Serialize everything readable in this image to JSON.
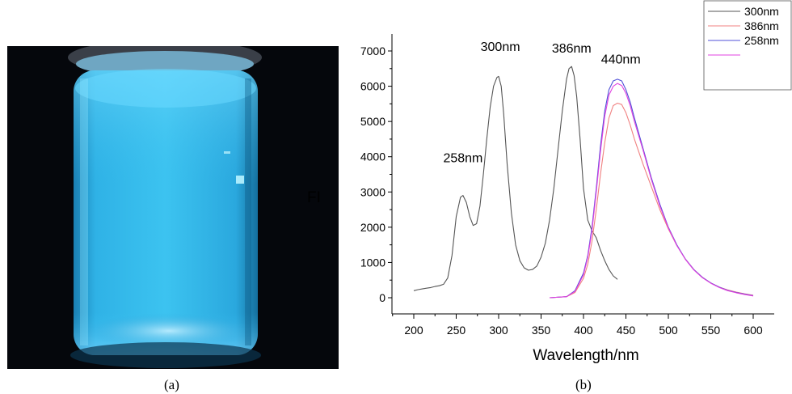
{
  "panel_a": {
    "caption": "(a)"
  },
  "panel_b": {
    "caption": "(b)"
  },
  "colors": {
    "ex_300": "#555555",
    "em_386": "#f08080",
    "em_300": "#5050d8",
    "em_258": "#e040e0"
  },
  "chart_data": {
    "type": "line",
    "xlabel": "Wavelength/nm",
    "ylabel": "FI",
    "xlim": [
      200,
      600
    ],
    "ylim": [
      0,
      7000
    ],
    "xticks": [
      200,
      250,
      300,
      350,
      400,
      450,
      500,
      550,
      600
    ],
    "yticks": [
      0,
      1000,
      2000,
      3000,
      4000,
      5000,
      6000,
      7000
    ],
    "grid": false,
    "legend_position": "top-right",
    "legend": [
      "300nm",
      "386nm",
      "258nm"
    ],
    "annotations": [
      {
        "text": "258nm",
        "x": 258,
        "y": 3850
      },
      {
        "text": "300nm",
        "x": 302,
        "y": 7000
      },
      {
        "text": "386nm",
        "x": 386,
        "y": 6950
      },
      {
        "text": "440nm",
        "x": 444,
        "y": 6650
      }
    ],
    "series": [
      {
        "key": "ex_300",
        "x": [
          200,
          205,
          210,
          215,
          220,
          225,
          230,
          235,
          240,
          245,
          250,
          255,
          258,
          262,
          266,
          270,
          274,
          278,
          282,
          286,
          290,
          294,
          298,
          300,
          303,
          306,
          310,
          315,
          320,
          325,
          330,
          335,
          340,
          345,
          350,
          355,
          360,
          365,
          370,
          375,
          380,
          383,
          386,
          389,
          392,
          396,
          400,
          405,
          410,
          415,
          420,
          425,
          430,
          435,
          440
        ],
        "y": [
          200,
          230,
          250,
          270,
          290,
          320,
          340,
          380,
          560,
          1200,
          2300,
          2850,
          2900,
          2700,
          2300,
          2050,
          2100,
          2600,
          3500,
          4500,
          5400,
          6000,
          6250,
          6280,
          6000,
          5200,
          3800,
          2400,
          1500,
          1050,
          850,
          780,
          800,
          900,
          1150,
          1550,
          2200,
          3100,
          4200,
          5300,
          6200,
          6500,
          6560,
          6300,
          5700,
          4500,
          3100,
          2200,
          1900,
          1700,
          1350,
          1050,
          800,
          620,
          520
        ]
      },
      {
        "key": "em_386",
        "x": [
          360,
          380,
          390,
          400,
          405,
          410,
          415,
          420,
          425,
          430,
          435,
          440,
          445,
          450,
          455,
          460,
          470,
          480,
          490,
          500,
          510,
          520,
          530,
          540,
          550,
          560,
          570,
          580,
          590,
          600
        ],
        "y": [
          0,
          30,
          150,
          550,
          950,
          1600,
          2500,
          3500,
          4400,
          5100,
          5450,
          5520,
          5480,
          5250,
          4900,
          4500,
          3800,
          3150,
          2500,
          1950,
          1480,
          1100,
          800,
          580,
          420,
          300,
          220,
          160,
          110,
          70
        ]
      },
      {
        "key": "em_300",
        "x": [
          360,
          380,
          390,
          400,
          405,
          410,
          415,
          420,
          425,
          430,
          435,
          440,
          445,
          450,
          455,
          460,
          470,
          480,
          490,
          500,
          510,
          520,
          530,
          540,
          550,
          560,
          570,
          580,
          590,
          600
        ],
        "y": [
          0,
          30,
          200,
          700,
          1200,
          2000,
          3100,
          4300,
          5300,
          5900,
          6150,
          6200,
          6150,
          5900,
          5550,
          5100,
          4250,
          3400,
          2650,
          2000,
          1500,
          1100,
          800,
          580,
          420,
          300,
          210,
          150,
          100,
          60
        ]
      },
      {
        "key": "em_258",
        "x": [
          360,
          380,
          390,
          400,
          405,
          410,
          415,
          420,
          425,
          430,
          435,
          440,
          445,
          450,
          455,
          460,
          470,
          480,
          490,
          500,
          510,
          520,
          530,
          540,
          550,
          560,
          570,
          580,
          590,
          600
        ],
        "y": [
          0,
          30,
          180,
          650,
          1150,
          1900,
          3000,
          4150,
          5150,
          5750,
          6000,
          6080,
          6020,
          5800,
          5450,
          5000,
          4200,
          3350,
          2600,
          1980,
          1480,
          1090,
          790,
          570,
          410,
          290,
          200,
          140,
          90,
          50
        ]
      }
    ],
    "legend_map": [
      {
        "label": "300nm",
        "key": "ex_300"
      },
      {
        "label": "386nm",
        "key": "em_386"
      },
      {
        "label": "258nm",
        "key": "em_300"
      },
      {
        "label": "",
        "key": "em_258"
      }
    ]
  }
}
